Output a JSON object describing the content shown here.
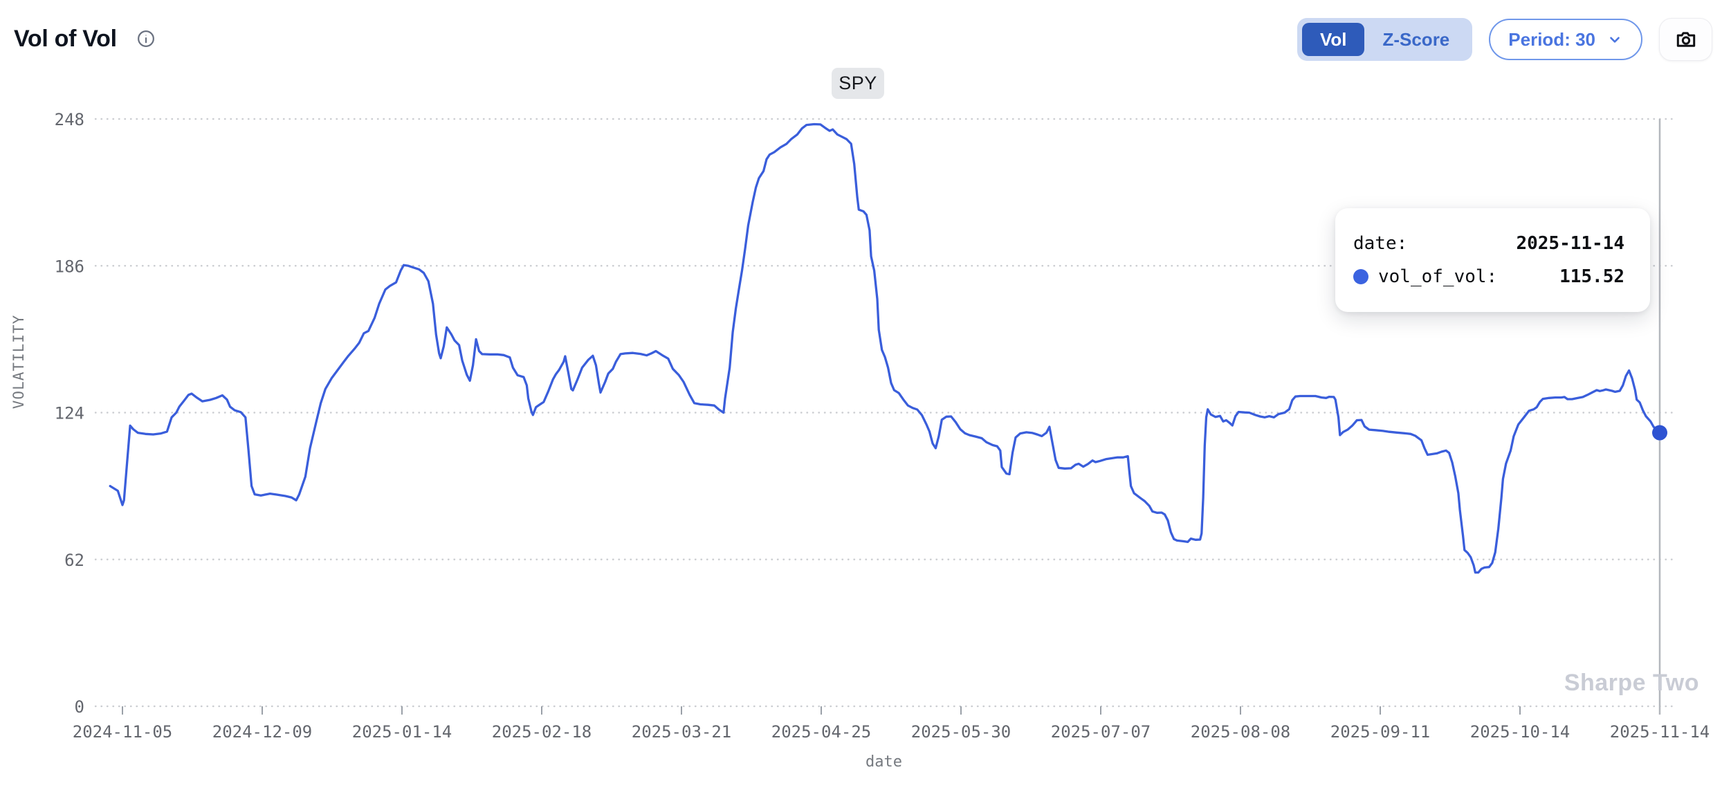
{
  "header": {
    "title": "Vol of Vol",
    "info_icon": "info-circle-icon",
    "view_toggle": {
      "options": [
        "Vol",
        "Z-Score"
      ],
      "selected": "Vol"
    },
    "period_dropdown": {
      "label": "Period: 30"
    },
    "camera_button": "camera-icon"
  },
  "tooltip": {
    "rows": [
      {
        "label": "date:",
        "value": "2025-11-14",
        "marker": false
      },
      {
        "label": "vol_of_vol:",
        "value": "115.52",
        "marker": true
      }
    ],
    "marker_color": "#3b63e0"
  },
  "chart_data": {
    "type": "line",
    "title": "Vol of Vol",
    "series_label": "SPY",
    "series_name": "vol_of_vol",
    "xlabel": "date",
    "ylabel": "VOLATILITY",
    "watermark": "Sharpe Two",
    "grid": "dotted horizontal",
    "legend_position": "top-center-badge",
    "ylim": [
      0,
      260
    ],
    "y_ticks": [
      0,
      62,
      124,
      186,
      248
    ],
    "x_ticks": [
      "2024-11-05",
      "2024-12-09",
      "2025-01-14",
      "2025-02-18",
      "2025-03-21",
      "2025-04-25",
      "2025-05-30",
      "2025-07-07",
      "2025-08-08",
      "2025-09-11",
      "2025-10-14",
      "2025-11-14"
    ],
    "line_color": "#3a5edb",
    "marker_color": "#2e53d2",
    "cursor": {
      "x_tick": "2025-11-14",
      "value": 115.52
    },
    "x_is_fraction_of_axis": true,
    "points": [
      [
        -0.008,
        93
      ],
      [
        -0.003,
        91
      ],
      [
        0.0,
        85
      ],
      [
        0.001,
        87
      ],
      [
        0.003,
        103
      ],
      [
        0.005,
        118.5
      ],
      [
        0.007,
        117
      ],
      [
        0.01,
        115.5
      ],
      [
        0.015,
        115
      ],
      [
        0.02,
        114.8
      ],
      [
        0.025,
        115.2
      ],
      [
        0.029,
        116
      ],
      [
        0.032,
        122
      ],
      [
        0.035,
        124
      ],
      [
        0.037,
        126.5
      ],
      [
        0.04,
        129
      ],
      [
        0.043,
        131.5
      ],
      [
        0.045,
        132
      ],
      [
        0.048,
        130.5
      ],
      [
        0.052,
        128.8
      ],
      [
        0.057,
        129.4
      ],
      [
        0.061,
        130.2
      ],
      [
        0.065,
        131.3
      ],
      [
        0.068,
        129.5
      ],
      [
        0.07,
        126.5
      ],
      [
        0.073,
        125
      ],
      [
        0.077,
        124.2
      ],
      [
        0.08,
        122
      ],
      [
        0.082,
        108
      ],
      [
        0.084,
        93
      ],
      [
        0.086,
        89.5
      ],
      [
        0.09,
        89
      ],
      [
        0.096,
        89.8
      ],
      [
        0.1,
        89.4
      ],
      [
        0.106,
        88.8
      ],
      [
        0.11,
        88.2
      ],
      [
        0.113,
        87
      ],
      [
        0.115,
        89.5
      ],
      [
        0.119,
        97
      ],
      [
        0.122,
        109
      ],
      [
        0.126,
        120
      ],
      [
        0.129,
        128
      ],
      [
        0.132,
        134
      ],
      [
        0.136,
        138.5
      ],
      [
        0.14,
        142
      ],
      [
        0.144,
        145.5
      ],
      [
        0.147,
        148
      ],
      [
        0.151,
        151
      ],
      [
        0.154,
        153.5
      ],
      [
        0.157,
        157.5
      ],
      [
        0.16,
        158.5
      ],
      [
        0.164,
        164
      ],
      [
        0.167,
        170
      ],
      [
        0.171,
        176
      ],
      [
        0.174,
        177.5
      ],
      [
        0.178,
        179
      ],
      [
        0.181,
        184
      ],
      [
        0.183,
        186.3
      ],
      [
        0.186,
        186
      ],
      [
        0.189,
        185.3
      ],
      [
        0.193,
        184.5
      ],
      [
        0.196,
        183
      ],
      [
        0.199,
        179.5
      ],
      [
        0.202,
        170
      ],
      [
        0.204,
        157
      ],
      [
        0.206,
        149
      ],
      [
        0.207,
        147
      ],
      [
        0.209,
        152
      ],
      [
        0.211,
        160
      ],
      [
        0.214,
        157
      ],
      [
        0.216,
        154.5
      ],
      [
        0.219,
        152.5
      ],
      [
        0.221,
        146
      ],
      [
        0.224,
        140
      ],
      [
        0.226,
        137.5
      ],
      [
        0.228,
        144
      ],
      [
        0.23,
        155
      ],
      [
        0.232,
        150
      ],
      [
        0.234,
        148.7
      ],
      [
        0.239,
        148.6
      ],
      [
        0.244,
        148.6
      ],
      [
        0.248,
        148.3
      ],
      [
        0.252,
        147.3
      ],
      [
        0.254,
        143
      ],
      [
        0.257,
        139.8
      ],
      [
        0.261,
        139
      ],
      [
        0.263,
        135.5
      ],
      [
        0.264,
        130
      ],
      [
        0.266,
        124.5
      ],
      [
        0.267,
        123
      ],
      [
        0.269,
        126.3
      ],
      [
        0.271,
        127.2
      ],
      [
        0.274,
        128.5
      ],
      [
        0.277,
        133
      ],
      [
        0.28,
        138
      ],
      [
        0.282,
        140.3
      ],
      [
        0.284,
        142
      ],
      [
        0.287,
        145.5
      ],
      [
        0.288,
        147.8
      ],
      [
        0.29,
        141
      ],
      [
        0.292,
        134
      ],
      [
        0.293,
        133.4
      ],
      [
        0.296,
        138
      ],
      [
        0.299,
        143
      ],
      [
        0.303,
        146.3
      ],
      [
        0.306,
        148
      ],
      [
        0.308,
        144
      ],
      [
        0.31,
        136
      ],
      [
        0.311,
        132.5
      ],
      [
        0.314,
        137
      ],
      [
        0.316,
        140.5
      ],
      [
        0.319,
        142.5
      ],
      [
        0.321,
        145.5
      ],
      [
        0.324,
        148.7
      ],
      [
        0.327,
        149
      ],
      [
        0.332,
        149.2
      ],
      [
        0.337,
        148.8
      ],
      [
        0.341,
        148.2
      ],
      [
        0.344,
        149
      ],
      [
        0.347,
        150
      ],
      [
        0.351,
        148.3
      ],
      [
        0.355,
        146.8
      ],
      [
        0.358,
        142.5
      ],
      [
        0.362,
        139.8
      ],
      [
        0.365,
        137
      ],
      [
        0.369,
        131.5
      ],
      [
        0.372,
        128
      ],
      [
        0.376,
        127.5
      ],
      [
        0.381,
        127.3
      ],
      [
        0.385,
        127
      ],
      [
        0.388,
        125.3
      ],
      [
        0.391,
        124
      ],
      [
        0.392,
        130
      ],
      [
        0.395,
        143
      ],
      [
        0.397,
        158
      ],
      [
        0.399,
        168
      ],
      [
        0.401,
        176
      ],
      [
        0.403,
        184
      ],
      [
        0.405,
        193
      ],
      [
        0.407,
        203
      ],
      [
        0.41,
        213
      ],
      [
        0.412,
        219
      ],
      [
        0.414,
        223
      ],
      [
        0.417,
        226
      ],
      [
        0.419,
        231
      ],
      [
        0.421,
        233
      ],
      [
        0.424,
        234
      ],
      [
        0.428,
        236
      ],
      [
        0.432,
        237.5
      ],
      [
        0.435,
        239.5
      ],
      [
        0.439,
        241.5
      ],
      [
        0.442,
        244
      ],
      [
        0.445,
        245.5
      ],
      [
        0.45,
        245.8
      ],
      [
        0.454,
        245.7
      ],
      [
        0.457,
        244.3
      ],
      [
        0.46,
        243
      ],
      [
        0.462,
        243.6
      ],
      [
        0.465,
        241.5
      ],
      [
        0.468,
        240.5
      ],
      [
        0.471,
        239.5
      ],
      [
        0.474,
        237.5
      ],
      [
        0.476,
        229
      ],
      [
        0.478,
        215
      ],
      [
        0.479,
        209.7
      ],
      [
        0.482,
        209
      ],
      [
        0.484,
        207.5
      ],
      [
        0.486,
        201
      ],
      [
        0.487,
        190
      ],
      [
        0.489,
        184
      ],
      [
        0.491,
        172
      ],
      [
        0.492,
        159
      ],
      [
        0.494,
        150.5
      ],
      [
        0.496,
        147.5
      ],
      [
        0.498,
        143
      ],
      [
        0.5,
        136.5
      ],
      [
        0.502,
        133.5
      ],
      [
        0.505,
        132.3
      ],
      [
        0.508,
        129.5
      ],
      [
        0.511,
        127
      ],
      [
        0.514,
        126
      ],
      [
        0.517,
        125.3
      ],
      [
        0.52,
        123
      ],
      [
        0.523,
        119
      ],
      [
        0.525,
        116
      ],
      [
        0.527,
        111
      ],
      [
        0.529,
        109
      ],
      [
        0.531,
        114
      ],
      [
        0.533,
        121
      ],
      [
        0.536,
        122.3
      ],
      [
        0.539,
        122.4
      ],
      [
        0.542,
        120
      ],
      [
        0.545,
        117
      ],
      [
        0.548,
        115.3
      ],
      [
        0.551,
        114.5
      ],
      [
        0.555,
        113.9
      ],
      [
        0.559,
        113.2
      ],
      [
        0.562,
        111.5
      ],
      [
        0.566,
        110.3
      ],
      [
        0.569,
        109.8
      ],
      [
        0.571,
        108
      ],
      [
        0.572,
        101
      ],
      [
        0.575,
        98.3
      ],
      [
        0.577,
        98
      ],
      [
        0.579,
        107
      ],
      [
        0.581,
        113.5
      ],
      [
        0.584,
        115.2
      ],
      [
        0.588,
        115.7
      ],
      [
        0.592,
        115.4
      ],
      [
        0.595,
        114.8
      ],
      [
        0.598,
        114.1
      ],
      [
        0.601,
        115.5
      ],
      [
        0.603,
        118
      ],
      [
        0.605,
        111
      ],
      [
        0.607,
        104
      ],
      [
        0.609,
        100.7
      ],
      [
        0.613,
        100.4
      ],
      [
        0.617,
        100.5
      ],
      [
        0.62,
        102
      ],
      [
        0.622,
        102.4
      ],
      [
        0.625,
        101.2
      ],
      [
        0.628,
        102.3
      ],
      [
        0.631,
        103.8
      ],
      [
        0.633,
        103.1
      ],
      [
        0.636,
        103.6
      ],
      [
        0.64,
        104.4
      ],
      [
        0.644,
        104.8
      ],
      [
        0.647,
        105.1
      ],
      [
        0.651,
        105.1
      ],
      [
        0.654,
        105.6
      ],
      [
        0.655,
        99
      ],
      [
        0.656,
        93
      ],
      [
        0.658,
        90
      ],
      [
        0.662,
        88
      ],
      [
        0.665,
        86.6
      ],
      [
        0.668,
        84.6
      ],
      [
        0.67,
        82.3
      ],
      [
        0.673,
        81.7
      ],
      [
        0.676,
        81.8
      ],
      [
        0.678,
        81
      ],
      [
        0.68,
        78.5
      ],
      [
        0.682,
        73.5
      ],
      [
        0.684,
        70.6
      ],
      [
        0.686,
        70
      ],
      [
        0.69,
        69.7
      ],
      [
        0.693,
        69.4
      ],
      [
        0.695,
        70.8
      ],
      [
        0.698,
        70.3
      ],
      [
        0.701,
        70.4
      ],
      [
        0.702,
        73
      ],
      [
        0.703,
        88
      ],
      [
        0.704,
        110
      ],
      [
        0.705,
        122
      ],
      [
        0.706,
        125.4
      ],
      [
        0.708,
        123.2
      ],
      [
        0.711,
        122.2
      ],
      [
        0.714,
        122.6
      ],
      [
        0.716,
        120.3
      ],
      [
        0.718,
        120.8
      ],
      [
        0.72,
        119.8
      ],
      [
        0.722,
        118.6
      ],
      [
        0.724,
        122.5
      ],
      [
        0.726,
        124.3
      ],
      [
        0.73,
        124.1
      ],
      [
        0.733,
        124
      ],
      [
        0.737,
        123
      ],
      [
        0.74,
        122.4
      ],
      [
        0.743,
        122
      ],
      [
        0.746,
        122.5
      ],
      [
        0.749,
        122
      ],
      [
        0.752,
        123.4
      ],
      [
        0.756,
        124
      ],
      [
        0.759,
        125.5
      ],
      [
        0.761,
        129.3
      ],
      [
        0.763,
        130.8
      ],
      [
        0.766,
        131
      ],
      [
        0.771,
        131
      ],
      [
        0.776,
        131
      ],
      [
        0.78,
        130.4
      ],
      [
        0.783,
        130.2
      ],
      [
        0.785,
        130.7
      ],
      [
        0.788,
        130.6
      ],
      [
        0.789,
        129.5
      ],
      [
        0.791,
        122
      ],
      [
        0.792,
        114.5
      ],
      [
        0.794,
        115.8
      ],
      [
        0.797,
        116.8
      ],
      [
        0.8,
        118.5
      ],
      [
        0.803,
        120.8
      ],
      [
        0.806,
        120.9
      ],
      [
        0.808,
        118.2
      ],
      [
        0.811,
        116.8
      ],
      [
        0.815,
        116.6
      ],
      [
        0.82,
        116.3
      ],
      [
        0.824,
        115.9
      ],
      [
        0.829,
        115.6
      ],
      [
        0.834,
        115.3
      ],
      [
        0.838,
        115
      ],
      [
        0.841,
        114.2
      ],
      [
        0.845,
        112.3
      ],
      [
        0.847,
        109
      ],
      [
        0.849,
        106.2
      ],
      [
        0.851,
        106.4
      ],
      [
        0.855,
        106.8
      ],
      [
        0.858,
        107.5
      ],
      [
        0.861,
        108
      ],
      [
        0.863,
        107
      ],
      [
        0.865,
        103
      ],
      [
        0.867,
        97
      ],
      [
        0.869,
        90
      ],
      [
        0.87,
        83
      ],
      [
        0.872,
        72
      ],
      [
        0.873,
        66
      ],
      [
        0.875,
        64.8
      ],
      [
        0.877,
        63
      ],
      [
        0.879,
        59.5
      ],
      [
        0.88,
        56.5
      ],
      [
        0.882,
        56.5
      ],
      [
        0.884,
        58
      ],
      [
        0.886,
        58.6
      ],
      [
        0.889,
        58.8
      ],
      [
        0.891,
        60.5
      ],
      [
        0.893,
        65
      ],
      [
        0.895,
        75
      ],
      [
        0.897,
        88
      ],
      [
        0.898,
        96
      ],
      [
        0.9,
        102.5
      ],
      [
        0.903,
        108
      ],
      [
        0.905,
        114
      ],
      [
        0.908,
        119
      ],
      [
        0.912,
        122.3
      ],
      [
        0.915,
        124.8
      ],
      [
        0.918,
        125.4
      ],
      [
        0.92,
        126.3
      ],
      [
        0.922,
        128.5
      ],
      [
        0.924,
        129.8
      ],
      [
        0.928,
        130.2
      ],
      [
        0.932,
        130.4
      ],
      [
        0.936,
        130.4
      ],
      [
        0.938,
        130.6
      ],
      [
        0.94,
        129.7
      ],
      [
        0.943,
        129.7
      ],
      [
        0.946,
        130.1
      ],
      [
        0.95,
        130.6
      ],
      [
        0.953,
        131.5
      ],
      [
        0.956,
        132.5
      ],
      [
        0.959,
        133.5
      ],
      [
        0.961,
        133.1
      ],
      [
        0.963,
        133.4
      ],
      [
        0.965,
        133.8
      ],
      [
        0.969,
        133.2
      ],
      [
        0.971,
        132.8
      ],
      [
        0.974,
        133.2
      ],
      [
        0.976,
        135.5
      ],
      [
        0.978,
        139.5
      ],
      [
        0.98,
        141.8
      ],
      [
        0.982,
        138.5
      ],
      [
        0.984,
        133.5
      ],
      [
        0.985,
        129.5
      ],
      [
        0.987,
        128.3
      ],
      [
        0.989,
        125
      ],
      [
        0.991,
        122.5
      ],
      [
        0.994,
        120.3
      ],
      [
        0.996,
        118
      ],
      [
        0.998,
        116.8
      ],
      [
        1.0,
        115.52
      ]
    ]
  }
}
